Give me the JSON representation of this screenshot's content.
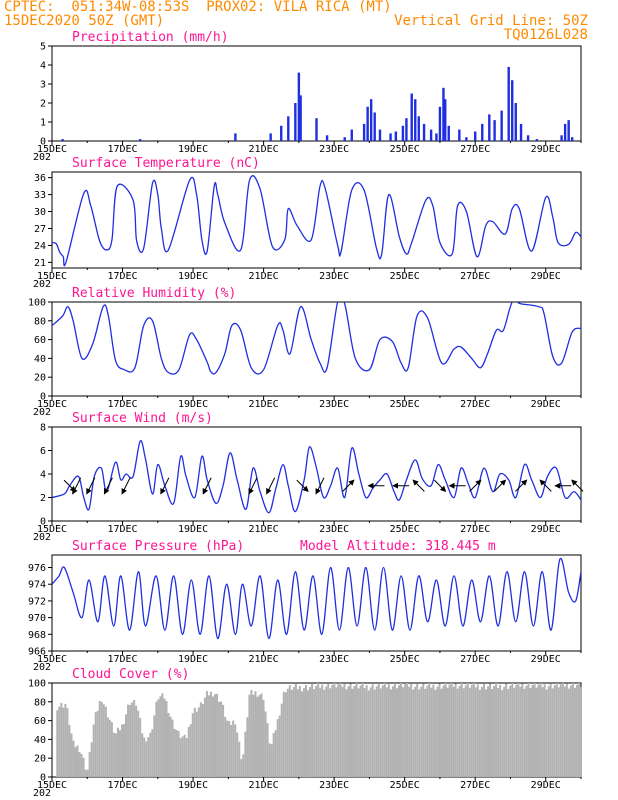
{
  "header": {
    "line1_left": "CPTEC:  051:34W-08:53S  PROX02: VILA RICA (MT)",
    "line2_left": "15DEC2020 50Z (GMT)",
    "line2_right": "Vertical Grid Line: 50Z",
    "line3_right": "TQ0126L028"
  },
  "colors": {
    "series": "#1f2fe0",
    "title": "#ff1493",
    "header": "#ff8a00",
    "cloud": "#b2b2b2",
    "arrow": "#000000"
  },
  "x_axis": {
    "labels": [
      "15DEC",
      "17DEC",
      "19DEC",
      "21DEC",
      "23DEC",
      "25DEC",
      "27DEC",
      "29DEC"
    ],
    "year_stub": "202"
  },
  "chart_data": [
    {
      "id": "precip",
      "type": "bar",
      "title": "Precipitation (mm/h)",
      "ylim": [
        0,
        5
      ],
      "yticks": [
        0,
        1,
        2,
        3,
        4,
        5
      ],
      "events": [
        {
          "day": 0.3,
          "v": 0.1
        },
        {
          "day": 2.5,
          "v": 0.1
        },
        {
          "day": 5.2,
          "v": 0.4
        },
        {
          "day": 6.2,
          "v": 0.4
        },
        {
          "day": 6.5,
          "v": 0.8
        },
        {
          "day": 6.7,
          "v": 1.3
        },
        {
          "day": 6.9,
          "v": 2.0
        },
        {
          "day": 7.0,
          "v": 3.6
        },
        {
          "day": 7.05,
          "v": 2.4
        },
        {
          "day": 7.5,
          "v": 1.2
        },
        {
          "day": 7.8,
          "v": 0.3
        },
        {
          "day": 8.3,
          "v": 0.2
        },
        {
          "day": 8.5,
          "v": 0.6
        },
        {
          "day": 8.85,
          "v": 0.9
        },
        {
          "day": 8.95,
          "v": 1.8
        },
        {
          "day": 9.05,
          "v": 2.2
        },
        {
          "day": 9.15,
          "v": 1.5
        },
        {
          "day": 9.3,
          "v": 0.6
        },
        {
          "day": 9.6,
          "v": 0.4
        },
        {
          "day": 9.75,
          "v": 0.5
        },
        {
          "day": 9.95,
          "v": 0.8
        },
        {
          "day": 10.05,
          "v": 1.2
        },
        {
          "day": 10.2,
          "v": 2.5
        },
        {
          "day": 10.3,
          "v": 2.2
        },
        {
          "day": 10.4,
          "v": 1.3
        },
        {
          "day": 10.55,
          "v": 0.9
        },
        {
          "day": 10.75,
          "v": 0.6
        },
        {
          "day": 10.9,
          "v": 0.4
        },
        {
          "day": 11.0,
          "v": 1.8
        },
        {
          "day": 11.1,
          "v": 2.8
        },
        {
          "day": 11.15,
          "v": 2.2
        },
        {
          "day": 11.25,
          "v": 0.8
        },
        {
          "day": 11.55,
          "v": 0.6
        },
        {
          "day": 11.75,
          "v": 0.2
        },
        {
          "day": 12.0,
          "v": 0.5
        },
        {
          "day": 12.2,
          "v": 0.9
        },
        {
          "day": 12.4,
          "v": 1.4
        },
        {
          "day": 12.55,
          "v": 1.1
        },
        {
          "day": 12.75,
          "v": 1.6
        },
        {
          "day": 12.95,
          "v": 3.9
        },
        {
          "day": 13.05,
          "v": 3.2
        },
        {
          "day": 13.15,
          "v": 2.0
        },
        {
          "day": 13.3,
          "v": 0.9
        },
        {
          "day": 13.5,
          "v": 0.3
        },
        {
          "day": 13.75,
          "v": 0.1
        },
        {
          "day": 14.45,
          "v": 0.3
        },
        {
          "day": 14.55,
          "v": 0.9
        },
        {
          "day": 14.65,
          "v": 1.1
        },
        {
          "day": 14.75,
          "v": 0.2
        }
      ]
    },
    {
      "id": "temp",
      "type": "line",
      "title": "Surface Temperature (nC)",
      "ylim": [
        20,
        37
      ],
      "yticks": [
        21,
        24,
        27,
        30,
        33,
        36
      ],
      "x": [
        0.0,
        0.12,
        0.22,
        0.32,
        0.4,
        0.9,
        1.1,
        1.35,
        1.55,
        1.7,
        1.85,
        2.3,
        2.4,
        2.6,
        2.85,
        3.0,
        3.1,
        3.3,
        3.9,
        4.1,
        4.25,
        4.4,
        4.6,
        4.7,
        4.9,
        5.35,
        5.6,
        5.9,
        6.25,
        6.6,
        6.7,
        6.95,
        7.35,
        7.6,
        7.75,
        8.1,
        8.2,
        8.5,
        8.85,
        9.2,
        9.35,
        9.55,
        9.85,
        10.05,
        10.2,
        10.6,
        10.8,
        11.0,
        11.35,
        11.5,
        11.75,
        12.05,
        12.3,
        12.5,
        12.85,
        13.05,
        13.25,
        13.6,
        14.0,
        14.2,
        14.35,
        14.65,
        14.85,
        15.0
      ],
      "values": [
        24.5,
        24.3,
        22.8,
        22.0,
        21.1,
        33.2,
        31.0,
        24.8,
        23.2,
        25.0,
        34.5,
        32.0,
        24.8,
        23.5,
        35.0,
        33.0,
        27.0,
        23.2,
        35.5,
        33.0,
        25.0,
        23.0,
        34.5,
        33.0,
        28.0,
        23.2,
        35.5,
        34.0,
        23.8,
        25.0,
        30.5,
        27.5,
        25.0,
        34.5,
        34.0,
        24.0,
        23.0,
        33.8,
        33.8,
        23.5,
        22.5,
        33.0,
        25.5,
        22.5,
        24.5,
        32.0,
        31.0,
        24.5,
        22.5,
        31.0,
        30.0,
        22.0,
        27.5,
        28.2,
        26.0,
        30.5,
        30.5,
        23.0,
        32.5,
        29.0,
        24.5,
        24.2,
        26.3,
        25.5
      ]
    },
    {
      "id": "rh",
      "type": "line",
      "title": "Relative Humidity (%)",
      "ylim": [
        0,
        100
      ],
      "yticks": [
        0,
        20,
        40,
        60,
        80,
        100
      ],
      "x": [
        0.0,
        0.3,
        0.45,
        0.6,
        0.85,
        1.15,
        1.45,
        1.6,
        1.8,
        2.05,
        2.35,
        2.6,
        2.85,
        3.1,
        3.3,
        3.6,
        3.9,
        4.1,
        4.4,
        4.5,
        4.65,
        4.9,
        5.1,
        5.35,
        5.65,
        6.0,
        6.4,
        6.55,
        6.75,
        7.05,
        7.35,
        7.6,
        7.8,
        8.1,
        8.3,
        8.6,
        9.0,
        9.3,
        9.65,
        9.9,
        10.1,
        10.35,
        10.65,
        11.05,
        11.4,
        11.6,
        11.9,
        12.15,
        12.35,
        12.6,
        12.8,
        13.05,
        13.3,
        13.8,
        13.95,
        14.2,
        14.45,
        14.75,
        15.0
      ],
      "values": [
        75,
        85,
        95,
        80,
        40,
        55,
        95,
        85,
        38,
        28,
        30,
        75,
        80,
        40,
        25,
        28,
        65,
        60,
        36,
        26,
        25,
        45,
        75,
        70,
        30,
        28,
        75,
        70,
        45,
        95,
        60,
        35,
        30,
        100,
        98,
        40,
        28,
        60,
        58,
        35,
        30,
        85,
        83,
        35,
        50,
        52,
        40,
        30,
        45,
        70,
        70,
        100,
        98,
        95,
        88,
        42,
        35,
        68,
        72
      ]
    },
    {
      "id": "wind",
      "type": "line",
      "title": "Surface Wind (m/s)",
      "ylim": [
        0,
        8
      ],
      "yticks": [
        0,
        2,
        4,
        6,
        8
      ],
      "x": [
        0.0,
        0.35,
        0.5,
        0.75,
        0.9,
        1.05,
        1.2,
        1.4,
        1.55,
        1.8,
        1.95,
        2.1,
        2.3,
        2.5,
        2.65,
        2.85,
        3.0,
        3.2,
        3.45,
        3.65,
        3.8,
        4.05,
        4.25,
        4.4,
        4.65,
        4.85,
        5.05,
        5.25,
        5.5,
        5.7,
        5.9,
        6.15,
        6.35,
        6.55,
        6.7,
        6.9,
        7.15,
        7.3,
        7.5,
        7.7,
        7.9,
        8.1,
        8.3,
        8.5,
        8.7,
        8.9,
        9.1,
        9.3,
        9.5,
        9.7,
        9.85,
        10.05,
        10.3,
        10.5,
        10.75,
        10.95,
        11.15,
        11.4,
        11.6,
        11.8,
        12.0,
        12.25,
        12.5,
        12.7,
        12.95,
        13.15,
        13.4,
        13.6,
        13.85,
        14.05,
        14.3,
        14.55,
        14.8,
        15.0
      ],
      "values": [
        2.0,
        2.3,
        3.0,
        3.8,
        2.0,
        1.0,
        3.8,
        4.5,
        2.5,
        5.0,
        3.5,
        4.0,
        3.8,
        6.8,
        5.3,
        2.3,
        4.8,
        3.0,
        1.5,
        5.5,
        3.8,
        2.0,
        5.5,
        3.5,
        1.5,
        3.0,
        5.8,
        3.5,
        1.0,
        4.5,
        2.5,
        0.7,
        2.8,
        4.8,
        3.0,
        0.8,
        3.5,
        6.3,
        4.5,
        2.0,
        3.0,
        4.5,
        2.0,
        6.2,
        4.0,
        2.0,
        2.8,
        3.5,
        4.0,
        2.5,
        1.8,
        3.5,
        5.2,
        3.6,
        3.0,
        4.8,
        3.5,
        2.0,
        4.5,
        3.2,
        2.0,
        4.5,
        2.5,
        4.0,
        3.5,
        2.0,
        4.8,
        3.5,
        2.0,
        3.8,
        4.5,
        2.0,
        2.5,
        1.8
      ]
    },
    {
      "id": "pressure",
      "type": "line",
      "title": "Surface Pressure (hPa)",
      "subtitle": "Model Altitude: 318.445  m",
      "ylim": [
        966,
        977.5
      ],
      "yticks": [
        966,
        968,
        970,
        972,
        974,
        976
      ],
      "x": [
        0.0,
        0.2,
        0.35,
        0.6,
        0.85,
        1.05,
        1.3,
        1.5,
        1.75,
        1.95,
        2.2,
        2.45,
        2.65,
        2.95,
        3.2,
        3.45,
        3.7,
        3.95,
        4.2,
        4.45,
        4.7,
        4.95,
        5.2,
        5.4,
        5.65,
        5.9,
        6.15,
        6.4,
        6.65,
        6.9,
        7.15,
        7.4,
        7.65,
        7.9,
        8.15,
        8.4,
        8.65,
        8.9,
        9.15,
        9.4,
        9.65,
        9.9,
        10.15,
        10.4,
        10.65,
        10.9,
        11.15,
        11.4,
        11.65,
        11.9,
        12.15,
        12.4,
        12.65,
        12.9,
        13.15,
        13.4,
        13.65,
        13.9,
        14.15,
        14.4,
        14.65,
        14.85,
        15.0
      ],
      "values": [
        974.0,
        975.0,
        976.0,
        973.0,
        970.0,
        974.5,
        969.5,
        975.0,
        969.0,
        975.0,
        968.5,
        975.5,
        969.0,
        975.0,
        968.5,
        975.0,
        968.0,
        974.5,
        968.0,
        975.0,
        967.5,
        974.0,
        968.0,
        974.0,
        969.0,
        975.0,
        967.5,
        974.5,
        968.0,
        975.5,
        968.5,
        975.0,
        968.0,
        976.0,
        968.5,
        976.0,
        969.0,
        976.0,
        968.5,
        976.0,
        968.5,
        975.0,
        968.5,
        975.0,
        969.5,
        974.5,
        969.0,
        975.0,
        969.0,
        974.5,
        969.5,
        975.0,
        969.0,
        975.5,
        969.5,
        975.5,
        969.0,
        975.5,
        968.5,
        977.0,
        973.0,
        972.0,
        975.5
      ]
    },
    {
      "id": "cloud",
      "type": "area",
      "title": "Cloud Cover (%)",
      "ylim": [
        0,
        100
      ],
      "yticks": [
        0,
        20,
        40,
        60,
        80,
        100
      ],
      "x": [
        0.0,
        0.15,
        0.4,
        0.6,
        0.8,
        1.0,
        1.2,
        1.4,
        1.6,
        1.8,
        2.0,
        2.2,
        2.4,
        2.6,
        2.8,
        3.0,
        3.2,
        3.4,
        3.6,
        3.8,
        4.0,
        4.2,
        4.4,
        4.6,
        4.8,
        5.0,
        5.2,
        5.4,
        5.6,
        5.8,
        6.0,
        6.2,
        6.4,
        6.6,
        6.8,
        7.0,
        7.5,
        8.0,
        8.5,
        9.0,
        9.5,
        10.0,
        10.5,
        11.0,
        11.5,
        12.0,
        12.5,
        13.0,
        13.5,
        14.0,
        14.5,
        15.0
      ],
      "values": [
        0,
        75,
        78,
        35,
        30,
        5,
        60,
        85,
        65,
        45,
        55,
        80,
        78,
        40,
        45,
        85,
        85,
        60,
        45,
        40,
        70,
        75,
        88,
        90,
        80,
        55,
        60,
        15,
        88,
        90,
        85,
        30,
        60,
        93,
        95,
        95,
        96,
        98,
        97,
        96,
        97,
        98,
        96,
        97,
        98,
        97,
        96,
        97,
        98,
        97,
        98,
        98
      ]
    }
  ],
  "wind_vectors": [
    {
      "day": 0.5,
      "dir": "se"
    },
    {
      "day": 0.7,
      "dir": "sw"
    },
    {
      "day": 1.1,
      "dir": "sw"
    },
    {
      "day": 1.6,
      "dir": "sw"
    },
    {
      "day": 2.1,
      "dir": "sw"
    },
    {
      "day": 3.2,
      "dir": "sw"
    },
    {
      "day": 4.4,
      "dir": "sw"
    },
    {
      "day": 5.7,
      "dir": "sw"
    },
    {
      "day": 6.2,
      "dir": "sw"
    },
    {
      "day": 7.1,
      "dir": "se"
    },
    {
      "day": 7.6,
      "dir": "sw"
    },
    {
      "day": 8.4,
      "dir": "ne"
    },
    {
      "day": 9.2,
      "dir": "w"
    },
    {
      "day": 9.9,
      "dir": "w"
    },
    {
      "day": 10.4,
      "dir": "nw"
    },
    {
      "day": 11.0,
      "dir": "se"
    },
    {
      "day": 11.5,
      "dir": "w"
    },
    {
      "day": 12.0,
      "dir": "ne"
    },
    {
      "day": 12.7,
      "dir": "ne"
    },
    {
      "day": 13.3,
      "dir": "ne"
    },
    {
      "day": 14.0,
      "dir": "nw"
    },
    {
      "day": 14.5,
      "dir": "w"
    },
    {
      "day": 14.9,
      "dir": "nw"
    }
  ]
}
